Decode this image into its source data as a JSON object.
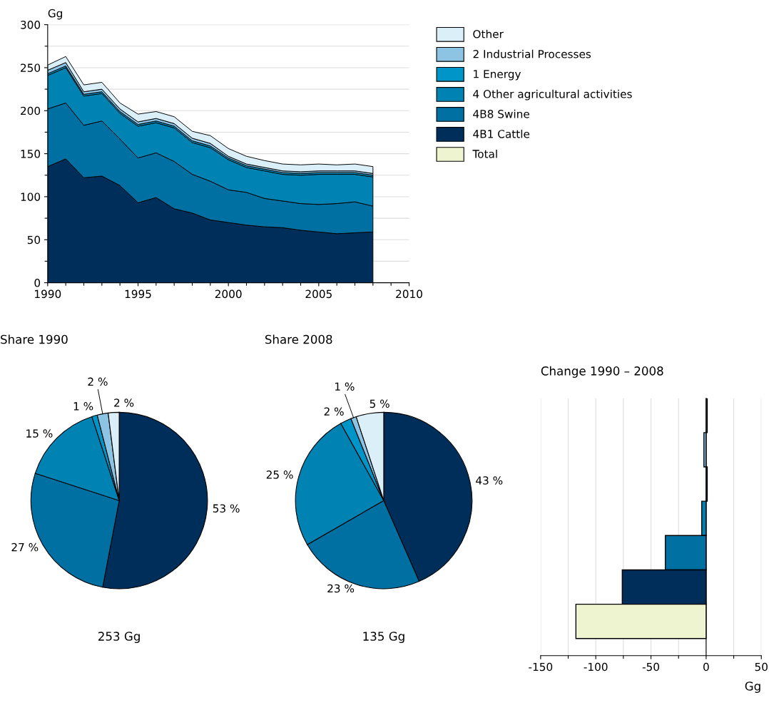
{
  "chart_data": [
    {
      "type": "area",
      "stacked": true,
      "ylabel": "Gg",
      "x": [
        1990,
        1991,
        1992,
        1993,
        1994,
        1995,
        1996,
        1997,
        1998,
        1999,
        2000,
        2001,
        2002,
        2003,
        2004,
        2005,
        2006,
        2007,
        2008
      ],
      "xlim": [
        1990,
        2010
      ],
      "xticks": [
        1990,
        {
          "value": 1991,
          "label": null
        },
        {
          "value": 1992,
          "label": null
        },
        {
          "value": 1993,
          "label": null
        },
        {
          "value": 1994,
          "label": null
        },
        1995,
        {
          "value": 1996,
          "label": null
        },
        {
          "value": 1997,
          "label": null
        },
        {
          "value": 1998,
          "label": null
        },
        {
          "value": 1999,
          "label": null
        },
        2000,
        {
          "value": 2001,
          "label": null
        },
        {
          "value": 2002,
          "label": null
        },
        {
          "value": 2003,
          "label": null
        },
        {
          "value": 2004,
          "label": null
        },
        2005,
        {
          "value": 2006,
          "label": null
        },
        {
          "value": 2007,
          "label": null
        },
        {
          "value": 2008,
          "label": null
        },
        {
          "value": 2009,
          "label": null
        },
        2010
      ],
      "ylim": [
        0,
        300
      ],
      "yticks": [
        0,
        {
          "value": 25,
          "label": null
        },
        50,
        {
          "value": 75,
          "label": null
        },
        100,
        {
          "value": 125,
          "label": null
        },
        150,
        {
          "value": 175,
          "label": null
        },
        200,
        {
          "value": 225,
          "label": null
        },
        250,
        {
          "value": 275,
          "label": null
        },
        300
      ],
      "grid": "y",
      "legend": "right",
      "series": [
        {
          "name": "4B1 Cattle",
          "color": "#002e5a",
          "values": [
            135,
            144,
            122,
            124,
            113,
            93,
            99,
            86,
            81,
            73,
            70,
            67,
            65,
            64,
            61,
            59,
            57,
            58,
            59
          ]
        },
        {
          "name": "4B8 Swine",
          "color": "#0070a3",
          "values": [
            67,
            65,
            61,
            64,
            54,
            52,
            52,
            55,
            45,
            45,
            38,
            38,
            33,
            31,
            31,
            32,
            35,
            36,
            30
          ]
        },
        {
          "name": "4 Other agricultural activities",
          "color": "#0083b3",
          "values": [
            39,
            41,
            34,
            32,
            30,
            37,
            35,
            39,
            37,
            39,
            35,
            29,
            32,
            31,
            33,
            35,
            34,
            32,
            34
          ]
        },
        {
          "name": "1 Energy",
          "color": "#0095c8",
          "values": [
            2,
            2,
            2,
            2,
            2,
            2,
            2,
            2,
            2,
            2,
            2,
            2,
            2,
            2,
            2,
            2,
            2,
            2,
            2
          ]
        },
        {
          "name": "2 Industrial Processes",
          "color": "#8dc3e3",
          "values": [
            4,
            4,
            3,
            3,
            3,
            3,
            3,
            3,
            3,
            3,
            2,
            2,
            2,
            2,
            2,
            2,
            2,
            2,
            2
          ]
        },
        {
          "name": "Other",
          "color": "#dbeff9",
          "values": [
            6,
            7,
            8,
            8,
            7,
            9,
            8,
            8,
            8,
            9,
            9,
            9,
            8,
            8,
            8,
            8,
            7,
            8,
            8
          ]
        }
      ]
    },
    {
      "type": "pie",
      "title": "Share 1990",
      "xlabel": "253 Gg",
      "categories": [
        null,
        null,
        null,
        null,
        null,
        null
      ],
      "values": [
        53,
        27,
        15,
        1,
        2,
        2
      ],
      "value_labels": [
        "53 %",
        "27 %",
        "15 %",
        "1 %",
        "2 %",
        "2 %"
      ],
      "colors": [
        "#002e5a",
        "#0070a3",
        "#0083b3",
        "#0095c8",
        "#8dc3e3",
        "#dbeff9"
      ]
    },
    {
      "type": "pie",
      "title": "Share 2008",
      "xlabel": "135 Gg",
      "categories": [
        null,
        null,
        null,
        null,
        null,
        null
      ],
      "values": [
        43,
        23,
        25,
        2,
        1,
        5
      ],
      "value_labels": [
        "43 %",
        "23 %",
        "25 %",
        "2 %",
        "1 %",
        "5 %"
      ],
      "colors": [
        "#002e5a",
        "#0070a3",
        "#0083b3",
        "#0095c8",
        "#8dc3e3",
        "#dbeff9"
      ]
    },
    {
      "type": "bar",
      "orientation": "horizontal",
      "title": "Change 1990 – 2008",
      "xlabel": "Gg",
      "categories": [
        null,
        null,
        null,
        null,
        null,
        null,
        null
      ],
      "xlim": [
        -150,
        50
      ],
      "xticks": [
        -150,
        {
          "value": -125,
          "label": null
        },
        -100,
        {
          "value": -75,
          "label": null
        },
        -50,
        {
          "value": -25,
          "label": null
        },
        0,
        {
          "value": 25,
          "label": null
        },
        50
      ],
      "grid": "x",
      "tick_labels": "x",
      "legend": "top",
      "series": [
        {
          "colors": [
            "#dbeff9",
            "#8dc3e3",
            "#0095c8",
            "#0083b3",
            "#0070a3",
            "#002e5a",
            null
          ],
          "values": [
            1,
            -2,
            1,
            -4,
            -37,
            -76,
            null
          ]
        },
        {
          "name": "Total",
          "color": "#eef3d0",
          "values": [
            null,
            null,
            null,
            null,
            null,
            null,
            -118
          ]
        }
      ]
    }
  ]
}
